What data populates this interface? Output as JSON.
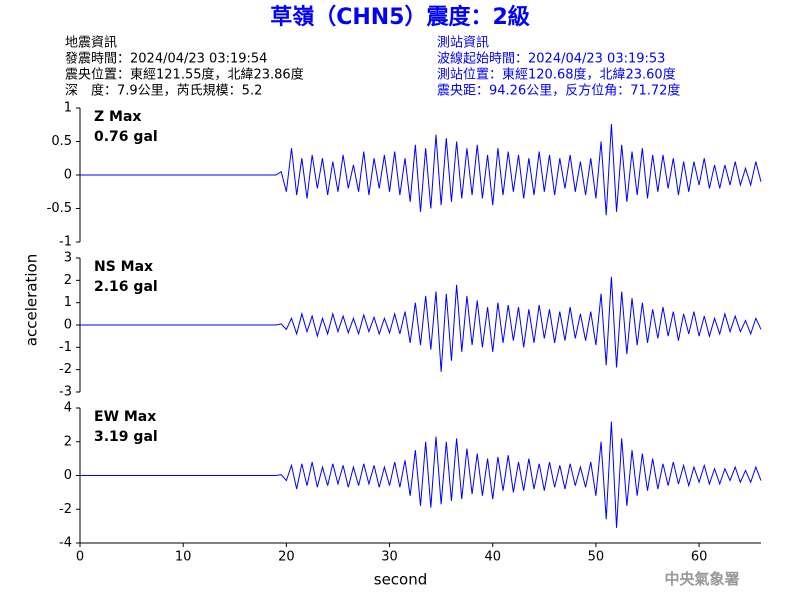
{
  "header": {
    "title": "草嶺（CHN5）震度：2級",
    "left": [
      "地震資訊",
      "發震時間：2024/04/23 03:19:54",
      "震央位置：東經121.55度，北緯23.86度",
      "深　度：7.9公里，芮氏規模：5.2"
    ],
    "right": [
      "測站資訊",
      "波線起始時間：2024/04/23 03:19:53",
      "測站位置：東經120.68度，北緯23.60度",
      "震央距：94.26公里，反方位角：71.72度"
    ],
    "footer": "中央氣象署"
  },
  "chart_data": [
    {
      "type": "line",
      "label": "Z Max",
      "peak": "0.76 gal",
      "color": "#0000ff",
      "label_color": "#ff0000",
      "x": [
        0,
        19,
        19.5,
        20,
        20.5,
        21,
        21.5,
        22,
        22.5,
        23,
        23.5,
        24,
        24.5,
        25,
        25.5,
        26,
        26.5,
        27,
        27.5,
        28,
        28.5,
        29,
        29.5,
        30,
        30.5,
        31,
        31.5,
        32,
        32.5,
        33,
        33.5,
        34,
        34.5,
        35,
        35.5,
        36,
        36.5,
        37,
        37.5,
        38,
        38.5,
        39,
        39.5,
        40,
        40.5,
        41,
        41.5,
        42,
        42.5,
        43,
        43.5,
        44,
        44.5,
        45,
        45.5,
        46,
        46.5,
        47,
        47.5,
        48,
        48.5,
        49,
        49.5,
        50,
        50.5,
        51,
        51.5,
        52,
        52.5,
        53,
        53.5,
        54,
        54.5,
        55,
        55.5,
        56,
        56.5,
        57,
        57.5,
        58,
        58.5,
        59,
        59.5,
        60,
        60.5,
        61,
        61.5,
        62,
        62.5,
        63,
        63.5,
        64,
        64.5,
        65,
        65.5,
        66
      ],
      "xlim": [
        0,
        66
      ],
      "ylim": [
        -1,
        1
      ],
      "yticks": [
        -1,
        -0.5,
        0,
        0.5,
        1
      ],
      "series": [
        {
          "values": [
            0,
            0,
            0.05,
            -0.25,
            0.4,
            -0.3,
            0.25,
            -0.35,
            0.3,
            -0.2,
            0.25,
            -0.3,
            0.2,
            -0.25,
            0.3,
            -0.2,
            0.15,
            -0.25,
            0.35,
            -0.3,
            0.25,
            -0.2,
            0.3,
            -0.25,
            0.35,
            -0.3,
            0.25,
            -0.4,
            0.45,
            -0.55,
            0.4,
            -0.5,
            0.6,
            -0.45,
            0.55,
            -0.4,
            0.5,
            -0.35,
            0.4,
            -0.3,
            0.45,
            -0.35,
            0.3,
            -0.45,
            0.4,
            -0.3,
            0.35,
            -0.25,
            0.3,
            -0.35,
            0.25,
            -0.3,
            0.35,
            -0.25,
            0.3,
            -0.3,
            0.25,
            -0.2,
            0.3,
            -0.25,
            0.2,
            -0.3,
            0.25,
            -0.35,
            0.5,
            -0.6,
            0.76,
            -0.55,
            0.45,
            -0.4,
            0.35,
            -0.3,
            0.4,
            -0.35,
            0.3,
            -0.25,
            0.3,
            -0.2,
            0.25,
            -0.3,
            0.2,
            -0.25,
            0.2,
            -0.15,
            0.25,
            -0.2,
            0.15,
            -0.2,
            0.15,
            -0.15,
            0.2,
            -0.15,
            0.1,
            -0.15,
            0.2,
            -0.1
          ]
        }
      ]
    },
    {
      "type": "line",
      "label": "NS Max",
      "peak": "2.16 gal",
      "color": "#0000ff",
      "label_color": "#ff0000",
      "ylabel": "acceleration",
      "x": [
        0,
        19,
        19.5,
        20,
        20.5,
        21,
        21.5,
        22,
        22.5,
        23,
        23.5,
        24,
        24.5,
        25,
        25.5,
        26,
        26.5,
        27,
        27.5,
        28,
        28.5,
        29,
        29.5,
        30,
        30.5,
        31,
        31.5,
        32,
        32.5,
        33,
        33.5,
        34,
        34.5,
        35,
        35.5,
        36,
        36.5,
        37,
        37.5,
        38,
        38.5,
        39,
        39.5,
        40,
        40.5,
        41,
        41.5,
        42,
        42.5,
        43,
        43.5,
        44,
        44.5,
        45,
        45.5,
        46,
        46.5,
        47,
        47.5,
        48,
        48.5,
        49,
        49.5,
        50,
        50.5,
        51,
        51.5,
        52,
        52.5,
        53,
        53.5,
        54,
        54.5,
        55,
        55.5,
        56,
        56.5,
        57,
        57.5,
        58,
        58.5,
        59,
        59.5,
        60,
        60.5,
        61,
        61.5,
        62,
        62.5,
        63,
        63.5,
        64,
        64.5,
        65,
        65.5,
        66
      ],
      "xlim": [
        0,
        66
      ],
      "ylim": [
        -3,
        3
      ],
      "yticks": [
        -3,
        -2,
        -1,
        0,
        1,
        2,
        3
      ],
      "series": [
        {
          "values": [
            0,
            0,
            0.05,
            -0.2,
            0.3,
            -0.4,
            0.5,
            -0.3,
            0.4,
            -0.5,
            0.3,
            -0.4,
            0.5,
            -0.3,
            0.4,
            -0.35,
            0.3,
            -0.4,
            0.45,
            -0.3,
            0.35,
            -0.4,
            0.3,
            -0.35,
            0.5,
            -0.4,
            0.6,
            -0.8,
            1.0,
            -0.9,
            1.3,
            -1.1,
            1.5,
            -2.1,
            1.4,
            -1.6,
            1.8,
            -1.2,
            1.3,
            -0.9,
            1.1,
            -1.0,
            0.8,
            -1.2,
            1.0,
            -0.8,
            0.9,
            -0.7,
            0.8,
            -1.0,
            0.7,
            -0.8,
            0.9,
            -0.6,
            0.7,
            -0.8,
            0.6,
            -0.7,
            0.8,
            -0.6,
            0.5,
            -0.7,
            0.6,
            -0.9,
            1.4,
            -1.8,
            2.16,
            -1.9,
            1.5,
            -1.3,
            1.2,
            -0.9,
            1.0,
            -0.8,
            0.7,
            -0.6,
            0.8,
            -0.5,
            0.6,
            -0.7,
            0.5,
            -0.4,
            0.6,
            -0.5,
            0.4,
            -0.5,
            0.3,
            -0.4,
            0.5,
            -0.3,
            0.4,
            -0.3,
            0.2,
            -0.4,
            0.3,
            -0.2
          ]
        }
      ]
    },
    {
      "type": "line",
      "label": "EW Max",
      "peak": "3.19 gal",
      "color": "#0000ff",
      "label_color": "#ff0000",
      "xlabel": "second",
      "x": [
        0,
        19,
        19.5,
        20,
        20.5,
        21,
        21.5,
        22,
        22.5,
        23,
        23.5,
        24,
        24.5,
        25,
        25.5,
        26,
        26.5,
        27,
        27.5,
        28,
        28.5,
        29,
        29.5,
        30,
        30.5,
        31,
        31.5,
        32,
        32.5,
        33,
        33.5,
        34,
        34.5,
        35,
        35.5,
        36,
        36.5,
        37,
        37.5,
        38,
        38.5,
        39,
        39.5,
        40,
        40.5,
        41,
        41.5,
        42,
        42.5,
        43,
        43.5,
        44,
        44.5,
        45,
        45.5,
        46,
        46.5,
        47,
        47.5,
        48,
        48.5,
        49,
        49.5,
        50,
        50.5,
        51,
        51.5,
        52,
        52.5,
        53,
        53.5,
        54,
        54.5,
        55,
        55.5,
        56,
        56.5,
        57,
        57.5,
        58,
        58.5,
        59,
        59.5,
        60,
        60.5,
        61,
        61.5,
        62,
        62.5,
        63,
        63.5,
        64,
        64.5,
        65,
        65.5,
        66
      ],
      "xlim": [
        0,
        66
      ],
      "xticks": [
        0,
        10,
        20,
        30,
        40,
        50,
        60
      ],
      "ylim": [
        -4,
        4
      ],
      "yticks": [
        -4,
        -2,
        0,
        2,
        4
      ],
      "series": [
        {
          "values": [
            0,
            0,
            0.05,
            -0.3,
            0.6,
            -0.8,
            0.7,
            -0.6,
            0.8,
            -0.7,
            0.5,
            -0.6,
            0.7,
            -0.5,
            0.6,
            -0.7,
            0.5,
            -0.6,
            0.7,
            -0.5,
            0.6,
            -0.7,
            0.5,
            -0.6,
            0.8,
            -0.7,
            0.9,
            -1.2,
            1.5,
            -1.8,
            2.0,
            -1.9,
            2.3,
            -1.7,
            2.0,
            -1.5,
            2.2,
            -1.4,
            1.6,
            -1.1,
            1.3,
            -1.2,
            1.0,
            -1.4,
            1.1,
            -0.9,
            1.2,
            -1.0,
            0.8,
            -0.9,
            1.0,
            -0.8,
            0.7,
            -0.9,
            0.8,
            -0.7,
            0.6,
            -0.8,
            0.7,
            -0.6,
            0.5,
            -0.7,
            0.8,
            -1.2,
            2.0,
            -2.6,
            3.19,
            -3.1,
            2.2,
            -1.8,
            1.5,
            -1.2,
            1.3,
            -0.9,
            1.0,
            -0.8,
            0.7,
            -0.6,
            0.8,
            -0.5,
            0.6,
            -0.6,
            0.5,
            -0.4,
            0.6,
            -0.5,
            0.4,
            -0.5,
            0.4,
            -0.3,
            0.5,
            -0.4,
            0.3,
            -0.4,
            0.5,
            -0.3
          ]
        }
      ]
    }
  ]
}
